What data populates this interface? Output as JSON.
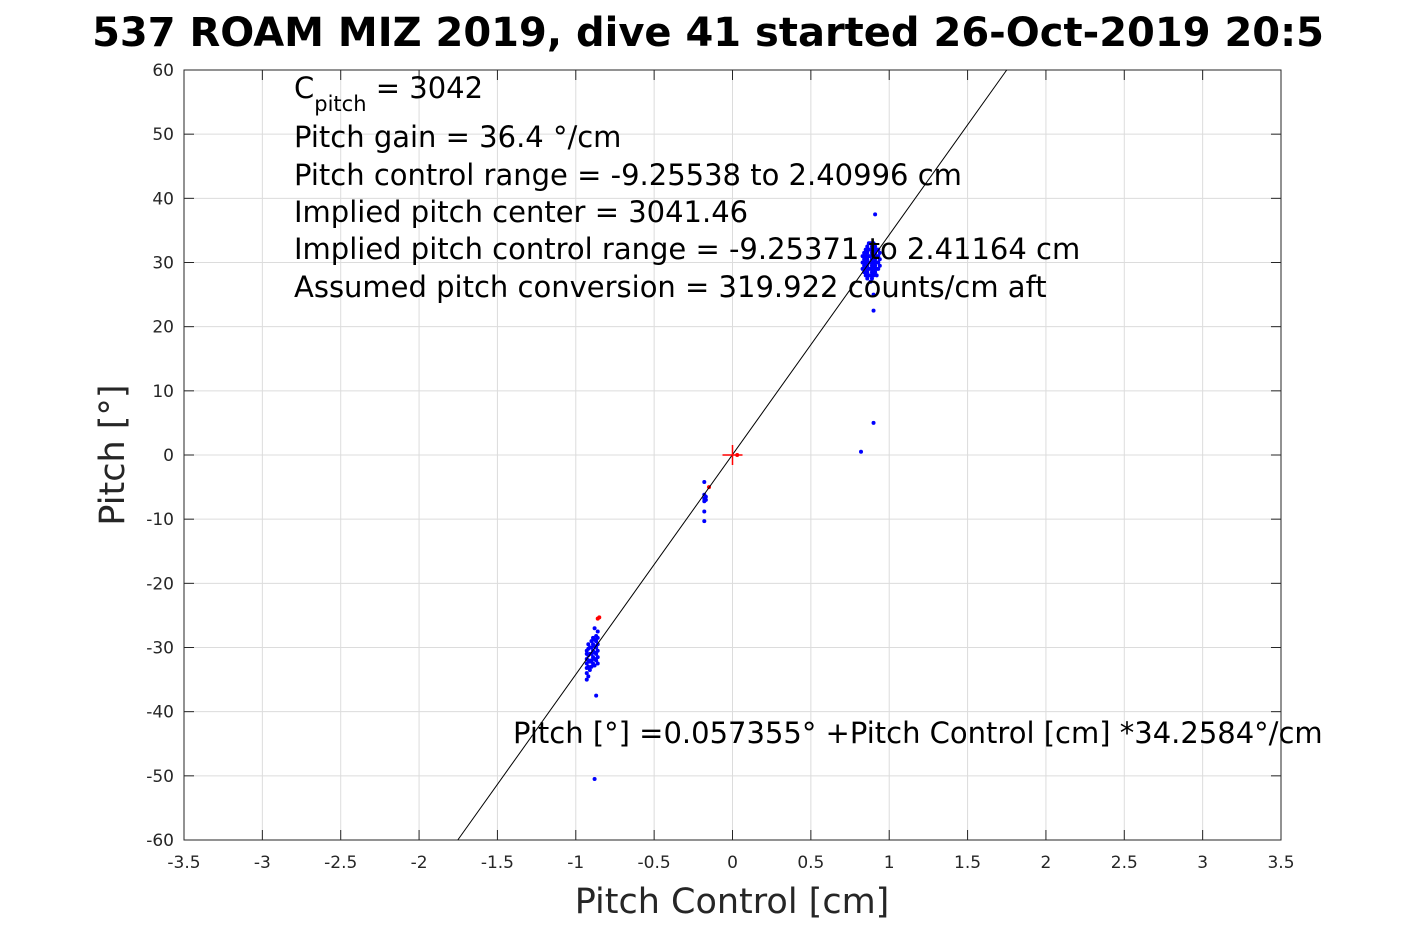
{
  "chart_data": {
    "type": "scatter",
    "title": "537 ROAM MIZ 2019, dive 41 started 26-Oct-2019 20:5",
    "xlabel": "Pitch Control [cm]",
    "ylabel": "Pitch [°]",
    "xlim": [
      -3.5,
      3.5
    ],
    "ylim": [
      -60,
      60
    ],
    "grid": true,
    "x_ticks": [
      -3.5,
      -3,
      -2.5,
      -2,
      -1.5,
      -1,
      -0.5,
      0,
      0.5,
      1,
      1.5,
      2,
      2.5,
      3,
      3.5
    ],
    "x_tick_labels": [
      "-3.5",
      "-3",
      "-2.5",
      "-2",
      "-1.5",
      "-1",
      "-0.5",
      "0",
      "0.5",
      "1",
      "1.5",
      "2",
      "2.5",
      "3",
      "3.5"
    ],
    "y_ticks": [
      60,
      50,
      40,
      30,
      20,
      10,
      0,
      -10,
      -20,
      -30,
      -40,
      -50,
      -60
    ],
    "y_tick_labels": [
      "60",
      "50",
      "40",
      "30",
      "20",
      "10",
      "0",
      "-10",
      "-20",
      "-30",
      "-40",
      "-50",
      "-60"
    ],
    "annotations": {
      "c_pitch_main": "C",
      "c_pitch_sub": "pitch",
      "c_pitch_value": " = 3042",
      "lines": [
        "Pitch gain = 36.4 °/cm",
        "Pitch control range = -9.25538 to 2.40996 cm",
        "Implied pitch center = 3041.46",
        "Implied pitch control range = -9.25371 to 2.41164 cm",
        "Assumed pitch conversion = 319.922 counts/cm aft"
      ],
      "fit_label": "Pitch [°] =0.057355° +Pitch Control [cm] *34.2584°/cm"
    },
    "fit_line": {
      "intercept": 0.057355,
      "slope": 34.2584,
      "color": "#000000"
    },
    "center_marker": {
      "x": 0,
      "y": 0,
      "color": "#ff0000"
    },
    "series": [
      {
        "color": "#0000ff",
        "points": [
          [
            -0.93,
            -35.0
          ],
          [
            -0.93,
            -34.0
          ],
          [
            -0.93,
            -33.2
          ],
          [
            -0.93,
            -32.5
          ],
          [
            -0.93,
            -31.8
          ],
          [
            -0.93,
            -31.0
          ],
          [
            -0.93,
            -30.5
          ],
          [
            -0.92,
            -34.5
          ],
          [
            -0.92,
            -33.0
          ],
          [
            -0.92,
            -32.0
          ],
          [
            -0.92,
            -31.2
          ],
          [
            -0.92,
            -30.2
          ],
          [
            -0.92,
            -29.5
          ],
          [
            -0.91,
            -33.5
          ],
          [
            -0.91,
            -32.2
          ],
          [
            -0.91,
            -31.0
          ],
          [
            -0.91,
            -30.0
          ],
          [
            -0.9,
            -33.0
          ],
          [
            -0.9,
            -32.0
          ],
          [
            -0.9,
            -31.0
          ],
          [
            -0.9,
            -30.0
          ],
          [
            -0.9,
            -29.0
          ],
          [
            -0.89,
            -32.5
          ],
          [
            -0.89,
            -31.5
          ],
          [
            -0.89,
            -30.5
          ],
          [
            -0.89,
            -29.5
          ],
          [
            -0.89,
            -28.5
          ],
          [
            -0.88,
            -32.8
          ],
          [
            -0.88,
            -31.8
          ],
          [
            -0.88,
            -30.8
          ],
          [
            -0.88,
            -29.8
          ],
          [
            -0.88,
            -28.8
          ],
          [
            -0.88,
            -27.0
          ],
          [
            -0.87,
            -32.0
          ],
          [
            -0.87,
            -31.0
          ],
          [
            -0.87,
            -30.0
          ],
          [
            -0.87,
            -29.0
          ],
          [
            -0.87,
            -28.2
          ],
          [
            -0.86,
            -32.5
          ],
          [
            -0.86,
            -31.5
          ],
          [
            -0.86,
            -30.5
          ],
          [
            -0.86,
            -29.5
          ],
          [
            -0.86,
            -28.5
          ],
          [
            -0.86,
            -27.5
          ],
          [
            -0.87,
            -37.5
          ],
          [
            -0.88,
            -50.5
          ],
          [
            -0.18,
            -4.2
          ],
          [
            -0.18,
            -6.2
          ],
          [
            -0.18,
            -6.8
          ],
          [
            -0.18,
            -7.2
          ],
          [
            -0.17,
            -6.5
          ],
          [
            -0.17,
            -7.0
          ],
          [
            -0.18,
            -8.8
          ],
          [
            -0.18,
            -10.3
          ],
          [
            0.82,
            0.5
          ],
          [
            0.9,
            5.0
          ],
          [
            0.9,
            22.5
          ],
          [
            0.9,
            25.0
          ],
          [
            0.91,
            37.5
          ],
          [
            0.83,
            29.0
          ],
          [
            0.83,
            30.0
          ],
          [
            0.83,
            31.0
          ],
          [
            0.84,
            28.5
          ],
          [
            0.84,
            29.5
          ],
          [
            0.84,
            30.5
          ],
          [
            0.84,
            31.5
          ],
          [
            0.85,
            28.0
          ],
          [
            0.85,
            29.0
          ],
          [
            0.85,
            30.0
          ],
          [
            0.85,
            31.0
          ],
          [
            0.85,
            32.0
          ],
          [
            0.86,
            27.5
          ],
          [
            0.86,
            28.5
          ],
          [
            0.86,
            29.5
          ],
          [
            0.86,
            30.5
          ],
          [
            0.86,
            31.5
          ],
          [
            0.86,
            32.5
          ],
          [
            0.87,
            28.0
          ],
          [
            0.87,
            29.0
          ],
          [
            0.87,
            30.0
          ],
          [
            0.87,
            31.0
          ],
          [
            0.87,
            32.0
          ],
          [
            0.87,
            33.0
          ],
          [
            0.88,
            27.0
          ],
          [
            0.88,
            28.0
          ],
          [
            0.88,
            29.0
          ],
          [
            0.88,
            30.0
          ],
          [
            0.88,
            31.0
          ],
          [
            0.88,
            32.0
          ],
          [
            0.88,
            33.0
          ],
          [
            0.89,
            27.5
          ],
          [
            0.89,
            28.5
          ],
          [
            0.89,
            29.5
          ],
          [
            0.89,
            30.5
          ],
          [
            0.89,
            31.5
          ],
          [
            0.89,
            32.5
          ],
          [
            0.9,
            28.0
          ],
          [
            0.9,
            29.0
          ],
          [
            0.9,
            30.0
          ],
          [
            0.9,
            31.0
          ],
          [
            0.9,
            32.0
          ],
          [
            0.9,
            33.0
          ],
          [
            0.91,
            28.5
          ],
          [
            0.91,
            29.5
          ],
          [
            0.91,
            30.5
          ],
          [
            0.91,
            31.5
          ],
          [
            0.91,
            32.5
          ],
          [
            0.92,
            28.0
          ],
          [
            0.92,
            29.0
          ],
          [
            0.92,
            30.0
          ],
          [
            0.92,
            31.0
          ],
          [
            0.92,
            32.0
          ],
          [
            0.93,
            29.0
          ],
          [
            0.93,
            30.0
          ],
          [
            0.93,
            31.0
          ],
          [
            0.93,
            32.0
          ],
          [
            0.94,
            29.5
          ],
          [
            0.94,
            30.5
          ],
          [
            0.94,
            31.5
          ]
        ]
      },
      {
        "color": "#ff0000",
        "points": [
          [
            -0.85,
            -25.3
          ],
          [
            -0.86,
            -25.5
          ],
          [
            -0.15,
            -5.0
          ],
          [
            0.03,
            0.0
          ]
        ]
      }
    ]
  }
}
